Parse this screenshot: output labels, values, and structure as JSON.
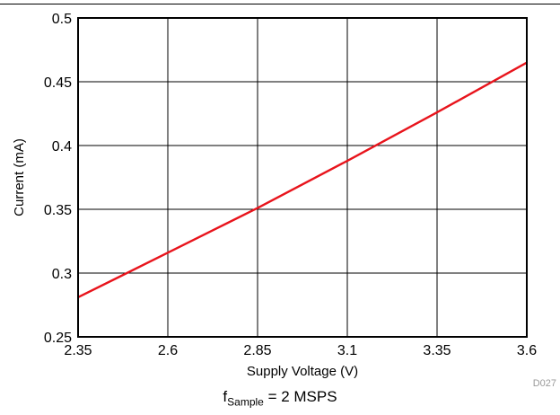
{
  "chart_data": {
    "type": "line",
    "title": "",
    "xlabel": "Supply Voltage (V)",
    "ylabel": "Current (mA)",
    "xlim": [
      2.35,
      3.6
    ],
    "ylim": [
      0.25,
      0.5
    ],
    "x_ticks": [
      2.35,
      2.6,
      2.85,
      3.1,
      3.35,
      3.6
    ],
    "y_ticks": [
      0.25,
      0.3,
      0.35,
      0.4,
      0.45,
      0.5
    ],
    "x_tick_labels": [
      "2.35",
      "2.6",
      "2.85",
      "3.1",
      "3.35",
      "3.6"
    ],
    "y_tick_labels": [
      "0.25",
      "0.3",
      "0.35",
      "0.4",
      "0.45",
      "0.5"
    ],
    "grid": true,
    "series": [
      {
        "color": "#e8141c",
        "x": [
          2.35,
          2.6,
          2.85,
          3.1,
          3.35,
          3.6
        ],
        "y": [
          0.281,
          0.316,
          0.351,
          0.388,
          0.426,
          0.465
        ]
      }
    ],
    "figure_id": "D027",
    "caption": {
      "prefix": "f",
      "subscript": "Sample",
      "suffix": " = 2 MSPS"
    }
  }
}
